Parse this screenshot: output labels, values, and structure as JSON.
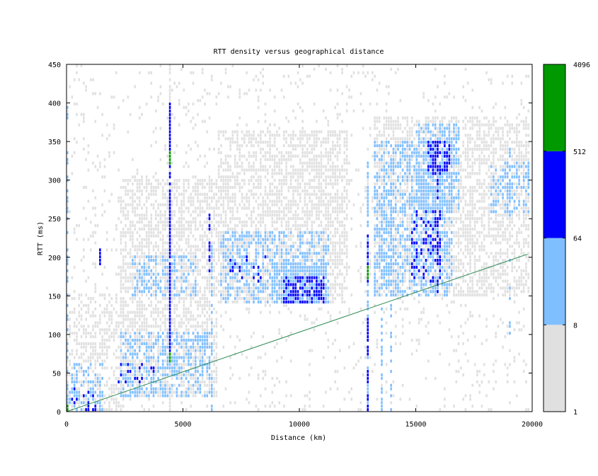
{
  "chart_data": {
    "type": "heatmap",
    "title": "RTT density versus geographical distance",
    "xlabel": "Distance (km)",
    "ylabel": "RTT (ms)",
    "xlim": [
      0,
      20000
    ],
    "ylim": [
      0,
      450
    ],
    "xticks": [
      "0",
      "5000",
      "10000",
      "15000",
      "20000"
    ],
    "yticks": [
      "0",
      "50",
      "100",
      "150",
      "200",
      "250",
      "300",
      "350",
      "400",
      "450"
    ],
    "colorbar": {
      "scale": "log",
      "range": [
        1,
        4096
      ],
      "tick_labels": [
        "1",
        "8",
        "64",
        "512",
        "4096"
      ],
      "bins": [
        {
          "from": 1,
          "to": 8,
          "color": "#e0e0e0"
        },
        {
          "from": 8,
          "to": 64,
          "color": "#80bfff"
        },
        {
          "from": 64,
          "to": 512,
          "color": "#0000ff"
        },
        {
          "from": 512,
          "to": 4096,
          "color": "#009900"
        }
      ]
    },
    "reference_line": {
      "color": "#2e8b57",
      "points": [
        [
          0,
          0
        ],
        [
          19800,
          204
        ]
      ]
    },
    "regions": [
      {
        "x": [
          0,
          19800
        ],
        "y": [
          0,
          450
        ],
        "density": "low",
        "coverage": 0.07
      },
      {
        "x": [
          2300,
          6400
        ],
        "y": [
          20,
          300
        ],
        "density": "low",
        "coverage": 0.55
      },
      {
        "x": [
          6500,
          12000
        ],
        "y": [
          140,
          360
        ],
        "density": "low",
        "coverage": 0.55
      },
      {
        "x": [
          13200,
          19800
        ],
        "y": [
          150,
          380
        ],
        "density": "low",
        "coverage": 0.5
      },
      {
        "x": [
          0,
          2400
        ],
        "y": [
          0,
          150
        ],
        "density": "low",
        "coverage": 0.4
      },
      {
        "x": [
          2300,
          6200
        ],
        "y": [
          20,
          100
        ],
        "density": "medium",
        "coverage": 0.45
      },
      {
        "x": [
          2800,
          5500
        ],
        "y": [
          150,
          200
        ],
        "density": "medium",
        "coverage": 0.4
      },
      {
        "x": [
          6600,
          11200
        ],
        "y": [
          140,
          230
        ],
        "density": "medium",
        "coverage": 0.4
      },
      {
        "x": [
          8800,
          11100
        ],
        "y": [
          140,
          190
        ],
        "density": "medium",
        "coverage": 0.7
      },
      {
        "x": [
          13200,
          16500
        ],
        "y": [
          150,
          350
        ],
        "density": "medium",
        "coverage": 0.45
      },
      {
        "x": [
          15000,
          16800
        ],
        "y": [
          260,
          370
        ],
        "density": "medium",
        "coverage": 0.55
      },
      {
        "x": [
          18200,
          19800
        ],
        "y": [
          260,
          320
        ],
        "density": "medium",
        "coverage": 0.4
      },
      {
        "x": [
          0,
          1500
        ],
        "y": [
          0,
          60
        ],
        "density": "medium",
        "coverage": 0.35
      },
      {
        "x": [
          9300,
          11000
        ],
        "y": [
          140,
          175
        ],
        "density": "high",
        "coverage": 0.55
      },
      {
        "x": [
          15500,
          16400
        ],
        "y": [
          310,
          350
        ],
        "density": "high",
        "coverage": 0.5
      },
      {
        "x": [
          14800,
          16000
        ],
        "y": [
          170,
          260
        ],
        "density": "high",
        "coverage": 0.25
      },
      {
        "x": [
          2200,
          3700
        ],
        "y": [
          40,
          60
        ],
        "density": "high",
        "coverage": 0.15
      },
      {
        "x": [
          0,
          1200
        ],
        "y": [
          0,
          30
        ],
        "density": "high",
        "coverage": 0.15
      },
      {
        "x": [
          7000,
          8500
        ],
        "y": [
          170,
          200
        ],
        "density": "high",
        "coverage": 0.12
      }
    ],
    "columns": [
      {
        "x": 4430,
        "y": [
          0,
          450
        ],
        "density": "low",
        "coverage": 0.75
      },
      {
        "x": 4430,
        "y": [
          70,
          400
        ],
        "density": "high",
        "coverage": 0.9
      },
      {
        "x": 4430,
        "y": [
          320,
          335
        ],
        "density": "very-high",
        "coverage": 1
      },
      {
        "x": 4430,
        "y": [
          65,
          75
        ],
        "density": "very-high",
        "coverage": 1
      },
      {
        "x": 12950,
        "y": [
          0,
          320
        ],
        "density": "medium",
        "coverage": 0.6
      },
      {
        "x": 12950,
        "y": [
          0,
          120
        ],
        "density": "high",
        "coverage": 0.6
      },
      {
        "x": 12950,
        "y": [
          170,
          230
        ],
        "density": "high",
        "coverage": 0.6
      },
      {
        "x": 12950,
        "y": [
          175,
          185
        ],
        "density": "very-high",
        "coverage": 1
      },
      {
        "x": 6150,
        "y": [
          180,
          280
        ],
        "density": "high",
        "coverage": 0.5
      },
      {
        "x": 1400,
        "y": [
          190,
          220
        ],
        "density": "high",
        "coverage": 0.8
      },
      {
        "x": 0,
        "y": [
          0,
          400
        ],
        "density": "medium",
        "coverage": 0.35
      },
      {
        "x": 0,
        "y": [
          0,
          8
        ],
        "density": "very-high",
        "coverage": 1
      },
      {
        "x": 13500,
        "y": [
          0,
          310
        ],
        "density": "medium",
        "coverage": 0.45
      },
      {
        "x": 13950,
        "y": [
          0,
          330
        ],
        "density": "medium",
        "coverage": 0.45
      },
      {
        "x": 19000,
        "y": [
          100,
          350
        ],
        "density": "medium",
        "coverage": 0.25
      },
      {
        "x": 6250,
        "y": [
          0,
          220
        ],
        "density": "medium",
        "coverage": 0.5
      },
      {
        "x": 15950,
        "y": [
          150,
          360
        ],
        "density": "high",
        "coverage": 0.35
      }
    ]
  }
}
